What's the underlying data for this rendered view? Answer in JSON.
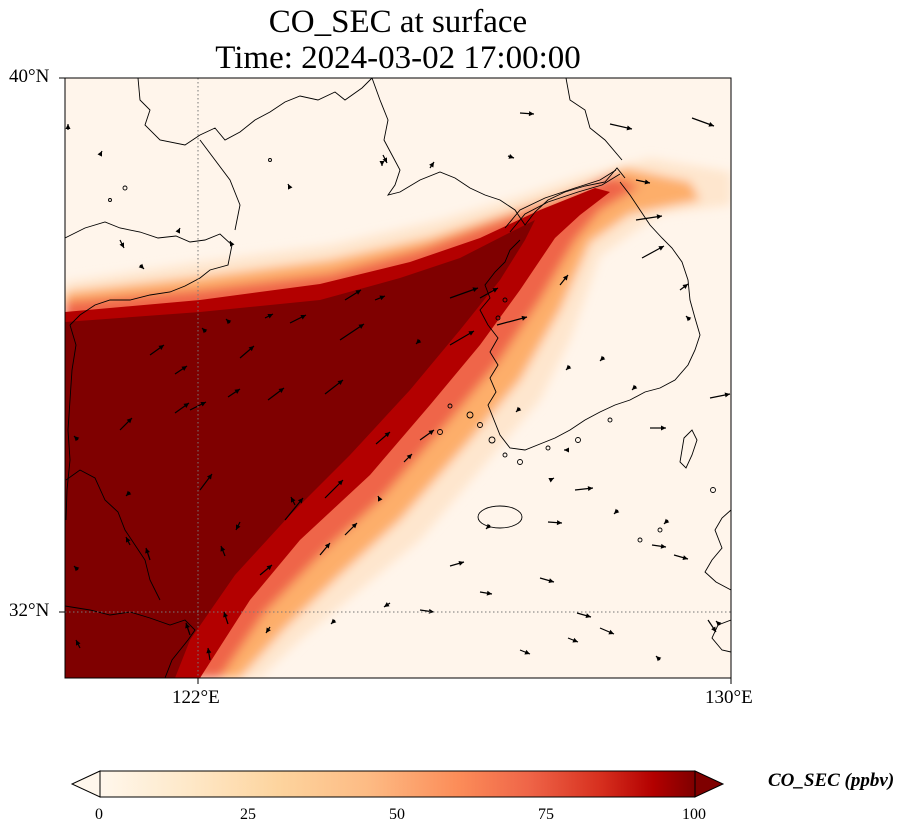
{
  "title": {
    "line1": "CO_SEC at surface",
    "line2": "Time: 2024-03-02 17:00:00"
  },
  "map": {
    "lon_range": [
      118.7,
      130
    ],
    "lat_range": [
      30.8,
      40
    ],
    "x_ticks": [
      {
        "value": 122,
        "label": "122°E"
      },
      {
        "value": 130,
        "label": "130°E"
      }
    ],
    "y_ticks": [
      {
        "value": 40,
        "label": "40°N"
      },
      {
        "value": 32,
        "label": "32°N"
      }
    ],
    "gridlines": "dotted at 122°E and 32°N",
    "field": "CO_SEC (ppbv) concentration shading with surface wind vectors; high values (>100) over eastern China and the Yellow Sea, a plume extending northeast toward the Korean Peninsula, low values elsewhere",
    "colors": {
      "low": "#fff5eb",
      "mid": "#fd8d3c",
      "high": "#7f0000",
      "coast": "#000000"
    }
  },
  "colorbar": {
    "title": "CO_SEC (ppbv)",
    "min": 0,
    "max": 100,
    "extend": "both",
    "colormap": "OrRd",
    "ticks": [
      {
        "value": 0,
        "label": "0"
      },
      {
        "value": 25,
        "label": "25"
      },
      {
        "value": 50,
        "label": "50"
      },
      {
        "value": 75,
        "label": "75"
      },
      {
        "value": 100,
        "label": "100"
      }
    ]
  }
}
